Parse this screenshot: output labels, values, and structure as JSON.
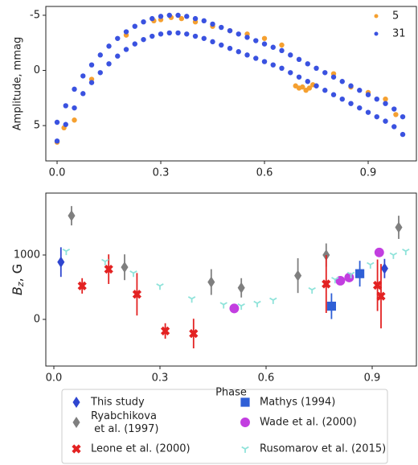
{
  "chart_data": [
    {
      "type": "scatter",
      "ylabel": "Amplitude, mmag",
      "xlim": [
        -0.0326,
        1.0395
      ],
      "ylim": [
        8.2,
        -5.8
      ],
      "xticks": [
        {
          "value": 0,
          "label": "0.0"
        },
        0.3,
        0.6,
        0.9
      ],
      "yticks": [
        -5,
        0,
        5
      ],
      "legend": "upper right",
      "series": [
        {
          "name": "5",
          "color": "#f5a030",
          "x": [
            0.0,
            0.02,
            0.05,
            0.1,
            0.2,
            0.28,
            0.3,
            0.33,
            0.36,
            0.4,
            0.45,
            0.5,
            0.55,
            0.6,
            0.65,
            0.69,
            0.7,
            0.71,
            0.72,
            0.73,
            0.74,
            0.8,
            0.85,
            0.9,
            0.95,
            0.98
          ],
          "values": [
            6.5,
            5.2,
            4.5,
            0.8,
            -3.2,
            -4.5,
            -4.6,
            -4.8,
            -4.7,
            -4.4,
            -4.0,
            -3.6,
            -3.3,
            -2.9,
            -2.3,
            1.4,
            1.6,
            1.5,
            1.8,
            1.6,
            1.3,
            0.3,
            1.5,
            2.0,
            2.6,
            4.0
          ]
        },
        {
          "name": "31",
          "color": "#3a52e0",
          "x": [
            0.0,
            0.0,
            0.025,
            0.025,
            0.05,
            0.05,
            0.075,
            0.075,
            0.1,
            0.1,
            0.125,
            0.125,
            0.15,
            0.15,
            0.175,
            0.175,
            0.2,
            0.2,
            0.225,
            0.225,
            0.25,
            0.25,
            0.275,
            0.275,
            0.3,
            0.3,
            0.325,
            0.325,
            0.35,
            0.35,
            0.375,
            0.375,
            0.4,
            0.4,
            0.425,
            0.425,
            0.45,
            0.45,
            0.475,
            0.475,
            0.5,
            0.5,
            0.525,
            0.525,
            0.55,
            0.55,
            0.575,
            0.575,
            0.6,
            0.6,
            0.625,
            0.625,
            0.65,
            0.65,
            0.675,
            0.675,
            0.7,
            0.7,
            0.725,
            0.725,
            0.75,
            0.75,
            0.775,
            0.775,
            0.8,
            0.8,
            0.825,
            0.825,
            0.85,
            0.85,
            0.875,
            0.875,
            0.9,
            0.9,
            0.925,
            0.925,
            0.95,
            0.95,
            0.975,
            0.975,
            1.0,
            1.0
          ],
          "values": [
            4.7,
            6.4,
            3.2,
            4.9,
            1.7,
            3.4,
            0.5,
            2.1,
            -0.5,
            1.1,
            -1.4,
            0.2,
            -2.2,
            -0.6,
            -2.9,
            -1.3,
            -3.5,
            -1.9,
            -4.0,
            -2.4,
            -4.4,
            -2.8,
            -4.7,
            -3.1,
            -4.9,
            -3.3,
            -5.0,
            -3.4,
            -5.0,
            -3.4,
            -4.9,
            -3.3,
            -4.7,
            -3.1,
            -4.5,
            -2.9,
            -4.2,
            -2.6,
            -3.9,
            -2.3,
            -3.6,
            -2.0,
            -3.3,
            -1.7,
            -3.0,
            -1.4,
            -2.7,
            -1.1,
            -2.4,
            -0.8,
            -2.1,
            -0.5,
            -1.8,
            -0.2,
            -1.4,
            0.2,
            -1.0,
            0.6,
            -0.6,
            1.0,
            -0.2,
            1.4,
            0.2,
            1.8,
            0.6,
            2.2,
            1.0,
            2.6,
            1.4,
            3.0,
            1.8,
            3.4,
            2.2,
            3.8,
            2.6,
            4.2,
            3.0,
            4.6,
            3.5,
            5.1,
            4.2,
            5.8
          ]
        }
      ]
    },
    {
      "type": "errorbar",
      "ylabel": {
        "base": "B",
        "sub": "z",
        "rest": ", G"
      },
      "xlabel": "Phase",
      "xlim": [
        -0.0227,
        1.025
      ],
      "ylim": [
        -725,
        1962
      ],
      "xticks": [
        {
          "value": 0,
          "label": "0.0"
        },
        0.3,
        0.6,
        0.9
      ],
      "yticks": [
        0,
        1000
      ],
      "legend": "below",
      "series": [
        {
          "name": "This study",
          "color": "#2f46d0",
          "marker": "diamond",
          "x": [
            0.02,
            0.935
          ],
          "values": [
            890,
            790
          ],
          "errors": [
            230,
            150
          ]
        },
        {
          "name": "Mathys (1994)",
          "color": "#2f5fd6",
          "marker": "square",
          "x": [
            0.785,
            0.865
          ],
          "values": [
            205,
            710
          ],
          "errors": [
            200,
            200
          ]
        },
        {
          "name": "Ryabchikova\n et al. (1997)",
          "color": "#7f7f7f",
          "marker": "diamond",
          "x": [
            0.05,
            0.2,
            0.445,
            0.53,
            0.69,
            0.77,
            0.975
          ],
          "values": [
            1610,
            810,
            580,
            490,
            680,
            1000,
            1430
          ],
          "errors": [
            150,
            200,
            200,
            150,
            270,
            180,
            180
          ]
        },
        {
          "name": "Wade et al. (2000)",
          "color": "#c23ee0",
          "marker": "circle",
          "x": [
            0.51,
            0.81,
            0.835,
            0.92
          ],
          "values": [
            170,
            600,
            650,
            1040
          ]
        },
        {
          "name": "Leone et al. (2000)",
          "color": "#e32222",
          "marker": "x",
          "x": [
            0.08,
            0.155,
            0.235,
            0.315,
            0.395,
            0.77,
            0.915,
            0.925
          ],
          "values": [
            520,
            780,
            390,
            -180,
            -220,
            550,
            530,
            360
          ],
          "errors": [
            120,
            230,
            330,
            120,
            230,
            450,
            400,
            500
          ]
        },
        {
          "name": "Rusomarov et al. (2015)",
          "color": "#8fe3da",
          "marker": "tri",
          "x": [
            0.035,
            0.145,
            0.225,
            0.3,
            0.39,
            0.48,
            0.53,
            0.575,
            0.62,
            0.73,
            0.795,
            0.84,
            0.895,
            0.96,
            0.995
          ],
          "values": [
            1060,
            900,
            720,
            520,
            320,
            230,
            210,
            250,
            300,
            460,
            620,
            700,
            850,
            1000,
            1060
          ]
        }
      ]
    }
  ]
}
